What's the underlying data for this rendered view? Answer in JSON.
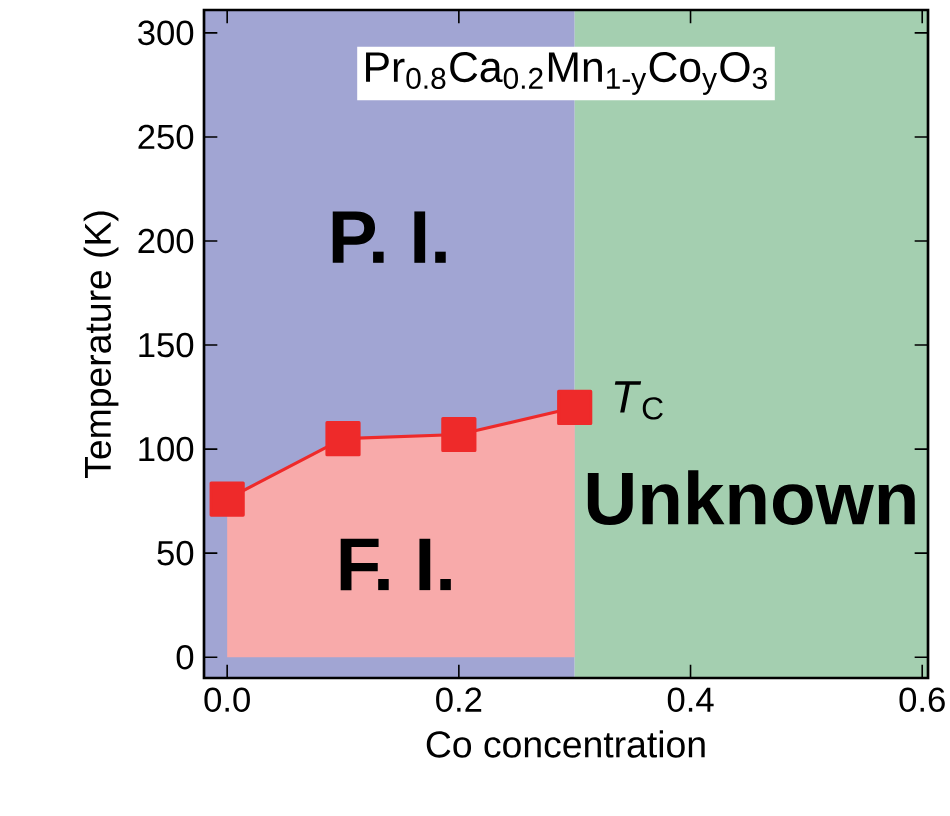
{
  "chart_data": {
    "type": "area",
    "title": "Pr$_{0.8}$Ca$_{0.2}$Mn$_{1-y}$Co$_{y}$O$_{3}$",
    "xlabel": "Co concentration",
    "ylabel": "Temperature (K)",
    "series": [
      {
        "name": "*T*$_{C}$",
        "color": "#ee2a2a",
        "marker": "square",
        "x": [
          0,
          0.1,
          0.2,
          0.3
        ],
        "values": [
          76,
          105,
          107,
          120
        ]
      }
    ],
    "annotations": [
      "F. I."
    ],
    "bands": [
      {
        "axis": "x",
        "from": -0.02,
        "to": 0.3,
        "label": "P. I.",
        "color": "#a1a5d3"
      },
      {
        "axis": "x",
        "from": 0.3,
        "to": 0.605,
        "label": "Unknown",
        "color": "#a4cfb0"
      }
    ],
    "xlim": [
      -0.02,
      0.605
    ],
    "ylim": [
      -10,
      311
    ],
    "xticks": [
      {
        "value": 0,
        "label": "0.0"
      },
      0.2,
      0.4,
      0.6
    ],
    "yticks": [
      0,
      50,
      100,
      150,
      200,
      250,
      300
    ]
  }
}
